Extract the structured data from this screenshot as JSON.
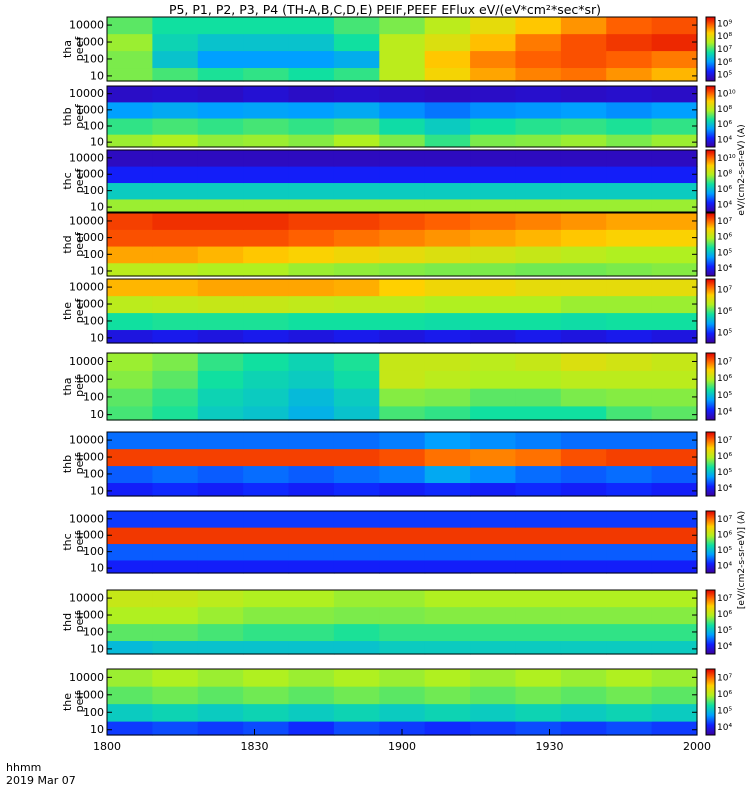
{
  "title": "P5, P1, P2, P3, P4 (TH-A,B,C,D,E) PEIF,PEEF EFlux eV/(eV*cm²*sec*sr)",
  "colorbar_label_top": "eV/(cm2-s-sr-eV) (A)",
  "colorbar_label_bottom": "[eV/(cm2-s-sr-eV)] (A)",
  "time_label_format": "hhmm",
  "date_label": "2019 Mar 07",
  "chart_data": {
    "type": "heatmap",
    "x_ticks": [
      "1800",
      "1830",
      "1900",
      "1930",
      "2000"
    ],
    "x_range": [
      "18:00",
      "20:00"
    ],
    "y_scale": "log",
    "y_ticks": [
      "10",
      "100",
      "1000",
      "10000"
    ],
    "y_range_eV": [
      5,
      30000
    ],
    "colormap": "rainbow",
    "panels": [
      {
        "label": [
          "tha",
          "peef"
        ],
        "z_min": "10⁴",
        "z_max": "10⁹",
        "cbar_ticks": [
          "10⁵",
          "10⁶",
          "10⁷",
          "10⁸",
          "10⁹"
        ],
        "times": [
          "1800",
          "1810",
          "1820",
          "1830",
          "1840",
          "1850",
          "1900",
          "1910",
          "1920",
          "1930",
          "1940",
          "1950",
          "2000"
        ],
        "energies": [
          10,
          100,
          1000,
          10000
        ],
        "values": [
          [
            0.55,
            0.5,
            0.46,
            0.48,
            0.45,
            0.48,
            0.62,
            0.73,
            0.8,
            0.84,
            0.86,
            0.82,
            0.78
          ],
          [
            0.55,
            0.38,
            0.3,
            0.3,
            0.3,
            0.33,
            0.62,
            0.76,
            0.84,
            0.88,
            0.9,
            0.88,
            0.85
          ],
          [
            0.58,
            0.42,
            0.38,
            0.38,
            0.38,
            0.45,
            0.62,
            0.68,
            0.77,
            0.85,
            0.9,
            0.93,
            0.95
          ],
          [
            0.52,
            0.45,
            0.45,
            0.45,
            0.45,
            0.5,
            0.55,
            0.62,
            0.7,
            0.76,
            0.82,
            0.88,
            0.9
          ]
        ]
      },
      {
        "label": [
          "thb",
          "peef"
        ],
        "z_min": "10⁴",
        "z_max": "10¹⁰",
        "cbar_ticks": [
          "10⁴",
          "10⁶",
          "10⁸",
          "10¹⁰"
        ],
        "times": [
          "1800",
          "1810",
          "1820",
          "1830",
          "1840",
          "1850",
          "1900",
          "1910",
          "1920",
          "1930",
          "1940",
          "1950",
          "2000"
        ],
        "energies": [
          10,
          100,
          1000,
          10000
        ],
        "values": [
          [
            0.58,
            0.6,
            0.57,
            0.58,
            0.56,
            0.6,
            0.55,
            0.48,
            0.55,
            0.56,
            0.58,
            0.55,
            0.58
          ],
          [
            0.48,
            0.5,
            0.48,
            0.5,
            0.48,
            0.5,
            0.44,
            0.4,
            0.45,
            0.47,
            0.48,
            0.46,
            0.48
          ],
          [
            0.3,
            0.32,
            0.3,
            0.31,
            0.3,
            0.32,
            0.28,
            0.25,
            0.28,
            0.29,
            0.3,
            0.28,
            0.3
          ],
          [
            0.06,
            0.07,
            0.06,
            0.08,
            0.06,
            0.07,
            0.06,
            0.05,
            0.06,
            0.07,
            0.06,
            0.07,
            0.06
          ]
        ]
      },
      {
        "label": [
          "thc",
          "peef"
        ],
        "z_min": "10⁴",
        "z_max": "10¹⁰",
        "cbar_ticks": [
          "10⁴",
          "10⁶",
          "10⁸",
          "10¹⁰"
        ],
        "times": [
          "1800",
          "1810",
          "1820",
          "1830",
          "1840",
          "1850",
          "1900",
          "1910",
          "1920",
          "1930",
          "1940",
          "1950",
          "2000"
        ],
        "energies": [
          10,
          100,
          1000,
          10000
        ],
        "values": [
          [
            0.58,
            0.58,
            0.58,
            0.58,
            0.58,
            0.58,
            0.58,
            0.58,
            0.58,
            0.58,
            0.58,
            0.58,
            0.58
          ],
          [
            0.4,
            0.4,
            0.4,
            0.4,
            0.4,
            0.4,
            0.4,
            0.4,
            0.4,
            0.4,
            0.4,
            0.4,
            0.4
          ],
          [
            0.14,
            0.14,
            0.14,
            0.14,
            0.14,
            0.14,
            0.14,
            0.14,
            0.14,
            0.14,
            0.14,
            0.14,
            0.14
          ],
          [
            0.05,
            0.05,
            0.05,
            0.05,
            0.05,
            0.05,
            0.05,
            0.05,
            0.05,
            0.05,
            0.05,
            0.05,
            0.05
          ]
        ]
      },
      {
        "label": [
          "thd",
          "peef"
        ],
        "z_min": "10³",
        "z_max": "10⁷",
        "cbar_ticks": [
          "10⁴",
          "10⁵",
          "10⁶",
          "10⁷"
        ],
        "times": [
          "1800",
          "1810",
          "1820",
          "1830",
          "1840",
          "1850",
          "1900",
          "1910",
          "1920",
          "1930",
          "1940",
          "1950",
          "2000"
        ],
        "energies": [
          10,
          100,
          1000,
          10000
        ],
        "values": [
          [
            0.62,
            0.62,
            0.6,
            0.6,
            0.58,
            0.57,
            0.56,
            0.55,
            0.55,
            0.54,
            0.54,
            0.55,
            0.56
          ],
          [
            0.8,
            0.8,
            0.78,
            0.76,
            0.74,
            0.72,
            0.7,
            0.68,
            0.66,
            0.64,
            0.62,
            0.6,
            0.6
          ],
          [
            0.9,
            0.9,
            0.9,
            0.9,
            0.88,
            0.86,
            0.84,
            0.82,
            0.8,
            0.78,
            0.76,
            0.74,
            0.74
          ],
          [
            0.92,
            0.94,
            0.94,
            0.94,
            0.92,
            0.92,
            0.9,
            0.88,
            0.86,
            0.84,
            0.82,
            0.8,
            0.8
          ]
        ]
      },
      {
        "label": [
          "the",
          "peef"
        ],
        "z_min": "10⁵",
        "z_max": "10⁸",
        "cbar_ticks": [
          "10⁵",
          "10⁶",
          "10⁷"
        ],
        "times": [
          "1800",
          "1810",
          "1820",
          "1830",
          "1840",
          "1850",
          "1900",
          "1910",
          "1920",
          "1930",
          "1940",
          "1950",
          "2000"
        ],
        "energies": [
          10,
          100,
          1000,
          10000
        ],
        "values": [
          [
            0.1,
            0.12,
            0.1,
            0.12,
            0.1,
            0.12,
            0.1,
            0.12,
            0.1,
            0.12,
            0.1,
            0.12,
            0.1
          ],
          [
            0.45,
            0.46,
            0.46,
            0.46,
            0.45,
            0.45,
            0.45,
            0.44,
            0.45,
            0.45,
            0.44,
            0.45,
            0.45
          ],
          [
            0.62,
            0.63,
            0.64,
            0.64,
            0.63,
            0.62,
            0.62,
            0.6,
            0.6,
            0.6,
            0.58,
            0.58,
            0.58
          ],
          [
            0.78,
            0.78,
            0.8,
            0.8,
            0.8,
            0.79,
            0.75,
            0.72,
            0.72,
            0.7,
            0.7,
            0.7,
            0.7
          ]
        ]
      },
      {
        "label": [
          "tha",
          "peif"
        ],
        "z_min": "10³",
        "z_max": "10⁷",
        "cbar_ticks": [
          "10⁴",
          "10⁵",
          "10⁶",
          "10⁷"
        ],
        "times": [
          "1800",
          "1810",
          "1820",
          "1830",
          "1840",
          "1850",
          "1900",
          "1910",
          "1920",
          "1930",
          "1940",
          "1950",
          "2000"
        ],
        "energies": [
          10,
          100,
          1000,
          10000
        ],
        "values": [
          [
            0.5,
            0.46,
            0.4,
            0.38,
            0.34,
            0.38,
            0.5,
            0.48,
            0.45,
            0.45,
            0.45,
            0.5,
            0.52
          ],
          [
            0.52,
            0.48,
            0.42,
            0.4,
            0.36,
            0.4,
            0.56,
            0.55,
            0.52,
            0.52,
            0.55,
            0.56,
            0.56
          ],
          [
            0.56,
            0.52,
            0.45,
            0.42,
            0.4,
            0.44,
            0.64,
            0.62,
            0.6,
            0.6,
            0.62,
            0.62,
            0.62
          ],
          [
            0.58,
            0.55,
            0.48,
            0.45,
            0.42,
            0.46,
            0.64,
            0.64,
            0.62,
            0.64,
            0.68,
            0.66,
            0.64
          ]
        ]
      },
      {
        "label": [
          "thb",
          "peif"
        ],
        "z_min": "10³",
        "z_max": "10⁷",
        "cbar_ticks": [
          "10⁴",
          "10⁵",
          "10⁶",
          "10⁷"
        ],
        "times": [
          "1800",
          "1810",
          "1820",
          "1830",
          "1840",
          "1850",
          "1900",
          "1910",
          "1920",
          "1930",
          "1940",
          "1950",
          "2000"
        ],
        "energies": [
          10,
          100,
          1000,
          10000
        ],
        "values": [
          [
            0.14,
            0.16,
            0.14,
            0.16,
            0.14,
            0.16,
            0.14,
            0.16,
            0.14,
            0.16,
            0.14,
            0.16,
            0.14
          ],
          [
            0.22,
            0.24,
            0.22,
            0.24,
            0.22,
            0.24,
            0.26,
            0.32,
            0.28,
            0.24,
            0.22,
            0.24,
            0.22
          ],
          [
            0.92,
            0.92,
            0.92,
            0.92,
            0.92,
            0.92,
            0.9,
            0.86,
            0.84,
            0.86,
            0.9,
            0.92,
            0.92
          ],
          [
            0.24,
            0.24,
            0.24,
            0.24,
            0.24,
            0.24,
            0.26,
            0.3,
            0.28,
            0.26,
            0.24,
            0.24,
            0.24
          ]
        ]
      },
      {
        "label": [
          "thc",
          "peif"
        ],
        "z_min": "10³",
        "z_max": "10⁷",
        "cbar_ticks": [
          "10⁴",
          "10⁵",
          "10⁶",
          "10⁷"
        ],
        "times": [
          "1800",
          "1810",
          "1820",
          "1830",
          "1840",
          "1850",
          "1900",
          "1910",
          "1920",
          "1930",
          "1940",
          "1950",
          "2000"
        ],
        "energies": [
          10,
          100,
          1000,
          10000
        ],
        "values": [
          [
            0.14,
            0.14,
            0.14,
            0.14,
            0.14,
            0.14,
            0.14,
            0.14,
            0.14,
            0.14,
            0.14,
            0.14,
            0.14
          ],
          [
            0.22,
            0.22,
            0.22,
            0.22,
            0.22,
            0.22,
            0.22,
            0.22,
            0.22,
            0.22,
            0.22,
            0.22,
            0.22
          ],
          [
            0.93,
            0.93,
            0.93,
            0.93,
            0.93,
            0.93,
            0.93,
            0.93,
            0.93,
            0.93,
            0.93,
            0.93,
            0.93
          ],
          [
            0.18,
            0.18,
            0.18,
            0.18,
            0.18,
            0.18,
            0.18,
            0.18,
            0.18,
            0.18,
            0.18,
            0.18,
            0.18
          ]
        ]
      },
      {
        "label": [
          "thd",
          "peif"
        ],
        "z_min": "10³",
        "z_max": "10⁷",
        "cbar_ticks": [
          "10⁴",
          "10⁵",
          "10⁶",
          "10⁷"
        ],
        "times": [
          "1800",
          "1810",
          "1820",
          "1830",
          "1840",
          "1850",
          "1900",
          "1910",
          "1920",
          "1930",
          "1940",
          "1950",
          "2000"
        ],
        "energies": [
          10,
          100,
          1000,
          10000
        ],
        "values": [
          [
            0.36,
            0.38,
            0.38,
            0.38,
            0.38,
            0.38,
            0.4,
            0.4,
            0.4,
            0.4,
            0.4,
            0.4,
            0.4
          ],
          [
            0.52,
            0.52,
            0.5,
            0.48,
            0.48,
            0.46,
            0.48,
            0.48,
            0.48,
            0.48,
            0.48,
            0.48,
            0.48
          ],
          [
            0.6,
            0.6,
            0.58,
            0.56,
            0.56,
            0.55,
            0.55,
            0.56,
            0.56,
            0.56,
            0.56,
            0.56,
            0.56
          ],
          [
            0.64,
            0.64,
            0.62,
            0.6,
            0.6,
            0.58,
            0.58,
            0.6,
            0.6,
            0.6,
            0.6,
            0.6,
            0.6
          ]
        ]
      },
      {
        "label": [
          "the",
          "peif"
        ],
        "z_min": "10³",
        "z_max": "10⁷",
        "cbar_ticks": [
          "10⁴",
          "10⁵",
          "10⁶",
          "10⁷"
        ],
        "times": [
          "1800",
          "1810",
          "1820",
          "1830",
          "1840",
          "1850",
          "1900",
          "1910",
          "1920",
          "1930",
          "1940",
          "1950",
          "2000"
        ],
        "energies": [
          10,
          100,
          1000,
          10000
        ],
        "values": [
          [
            0.18,
            0.2,
            0.18,
            0.2,
            0.16,
            0.2,
            0.18,
            0.16,
            0.18,
            0.2,
            0.18,
            0.2,
            0.18
          ],
          [
            0.4,
            0.42,
            0.4,
            0.42,
            0.4,
            0.42,
            0.4,
            0.42,
            0.4,
            0.42,
            0.4,
            0.42,
            0.4
          ],
          [
            0.52,
            0.54,
            0.52,
            0.54,
            0.52,
            0.54,
            0.52,
            0.54,
            0.52,
            0.54,
            0.52,
            0.54,
            0.52
          ],
          [
            0.58,
            0.6,
            0.58,
            0.6,
            0.58,
            0.6,
            0.58,
            0.6,
            0.58,
            0.6,
            0.58,
            0.6,
            0.58
          ]
        ]
      }
    ]
  }
}
